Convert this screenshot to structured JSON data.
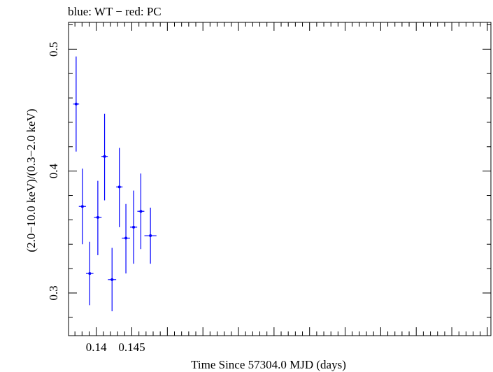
{
  "chart_data": {
    "type": "scatter",
    "title": "blue: WT − red: PC",
    "xlabel": "Time Since 57304.0 MJD (days)",
    "ylabel": "(2.0−10.0 keV)/(0.3−2.0 keV)",
    "xlim": [
      0.1361,
      0.1955
    ],
    "ylim": [
      0.265,
      0.522
    ],
    "x_ticks": [
      {
        "value": 0.14,
        "label": "0.14"
      },
      {
        "value": 0.145,
        "label": "0.145"
      }
    ],
    "y_ticks": [
      {
        "value": 0.3,
        "label": "0.3"
      },
      {
        "value": 0.4,
        "label": "0.4"
      },
      {
        "value": 0.5,
        "label": "0.5"
      }
    ],
    "grid": false,
    "series": [
      {
        "color": "#0000ff",
        "points": [
          {
            "x": 0.13717,
            "xerr": 0.00042,
            "y": 0.455,
            "yerr_lo": 0.039,
            "yerr_hi": 0.039
          },
          {
            "x": 0.13805,
            "xerr": 0.0005,
            "y": 0.371,
            "yerr_lo": 0.031,
            "yerr_hi": 0.031
          },
          {
            "x": 0.13908,
            "xerr": 0.00052,
            "y": 0.316,
            "yerr_lo": 0.026,
            "yerr_hi": 0.026
          },
          {
            "x": 0.14022,
            "xerr": 0.00053,
            "y": 0.362,
            "yerr_lo": 0.031,
            "yerr_hi": 0.03
          },
          {
            "x": 0.14117,
            "xerr": 0.00045,
            "y": 0.412,
            "yerr_lo": 0.036,
            "yerr_hi": 0.035
          },
          {
            "x": 0.14222,
            "xerr": 0.00058,
            "y": 0.311,
            "yerr_lo": 0.026,
            "yerr_hi": 0.026
          },
          {
            "x": 0.14325,
            "xerr": 0.00045,
            "y": 0.387,
            "yerr_lo": 0.033,
            "yerr_hi": 0.032
          },
          {
            "x": 0.14417,
            "xerr": 0.00057,
            "y": 0.345,
            "yerr_lo": 0.029,
            "yerr_hi": 0.028
          },
          {
            "x": 0.14525,
            "xerr": 0.0005,
            "y": 0.354,
            "yerr_lo": 0.03,
            "yerr_hi": 0.03
          },
          {
            "x": 0.14627,
            "xerr": 0.00049,
            "y": 0.367,
            "yerr_lo": 0.031,
            "yerr_hi": 0.031
          },
          {
            "x": 0.14762,
            "xerr": 0.00085,
            "y": 0.347,
            "yerr_lo": 0.023,
            "yerr_hi": 0.023
          }
        ]
      }
    ]
  }
}
